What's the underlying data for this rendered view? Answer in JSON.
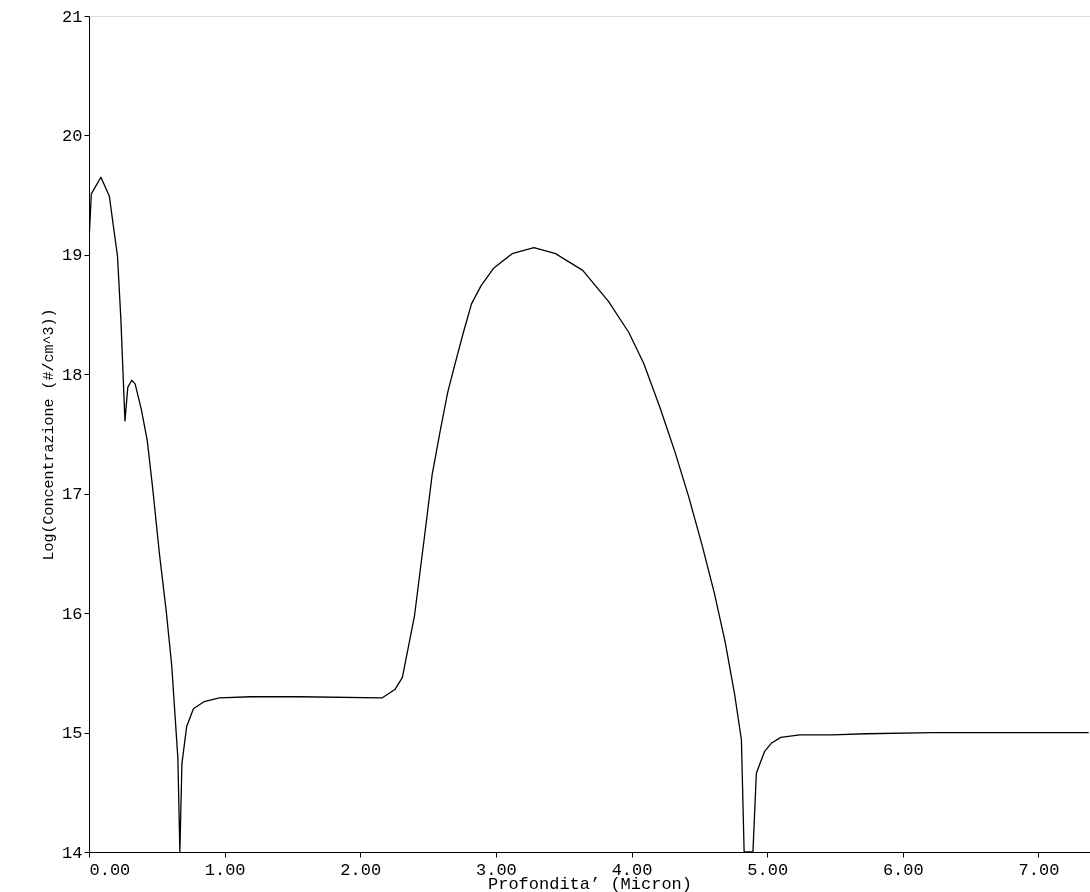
{
  "chart_data": {
    "type": "line",
    "xlabel": "Profondita’ (Micron)",
    "ylabel": "Log(Concentrazione (#/cm^3))",
    "xlim": [
      0,
      7.38
    ],
    "ylim": [
      14,
      21
    ],
    "xticks": [
      {
        "value": 0,
        "label": "0.00"
      },
      {
        "value": 1,
        "label": "1.00"
      },
      {
        "value": 2,
        "label": "2.00"
      },
      {
        "value": 3,
        "label": "3.00"
      },
      {
        "value": 4,
        "label": "4.00"
      },
      {
        "value": 5,
        "label": "5.00"
      },
      {
        "value": 6,
        "label": "6.00"
      },
      {
        "value": 7,
        "label": "7.00"
      }
    ],
    "yticks": [
      14,
      15,
      16,
      17,
      18,
      19,
      20,
      21
    ],
    "grid": false,
    "marker": "none",
    "line_style": "solid",
    "series": [
      {
        "color": "#000000",
        "x": [
          0,
          0.017,
          0.088,
          0.15,
          0.21,
          0.235,
          0.265,
          0.286,
          0.315,
          0.34,
          0.387,
          0.43,
          0.47,
          0.52,
          0.57,
          0.61,
          0.655,
          0.67,
          0.685,
          0.72,
          0.77,
          0.85,
          0.96,
          1.19,
          1.55,
          2.16,
          2.255,
          2.31,
          2.35,
          2.4,
          2.47,
          2.53,
          2.59,
          2.645,
          2.69,
          2.76,
          2.82,
          2.89,
          2.985,
          3.12,
          3.28,
          3.44,
          3.64,
          3.83,
          3.98,
          4.09,
          4.21,
          4.32,
          4.42,
          4.52,
          4.61,
          4.69,
          4.76,
          4.81,
          4.83,
          4.895,
          4.92,
          4.98,
          5.03,
          5.1,
          5.24,
          5.48,
          5.73,
          6.22,
          7.37
        ],
        "values": [
          19.11,
          19.51,
          19.65,
          19.49,
          18.99,
          18.46,
          17.61,
          17.89,
          17.95,
          17.92,
          17.7,
          17.44,
          17.04,
          16.49,
          16.01,
          15.56,
          14.79,
          14.0,
          14.74,
          15.05,
          15.2,
          15.26,
          15.29,
          15.3,
          15.3,
          15.29,
          15.36,
          15.46,
          15.69,
          15.98,
          16.61,
          17.16,
          17.53,
          17.85,
          18.05,
          18.35,
          18.59,
          18.74,
          18.89,
          19.01,
          19.06,
          19.01,
          18.87,
          18.61,
          18.35,
          18.09,
          17.72,
          17.35,
          16.98,
          16.57,
          16.17,
          15.76,
          15.32,
          14.94,
          14.0,
          14.0,
          14.66,
          14.84,
          14.91,
          14.96,
          14.98,
          14.98,
          14.99,
          15.0,
          15.0
        ]
      }
    ]
  }
}
